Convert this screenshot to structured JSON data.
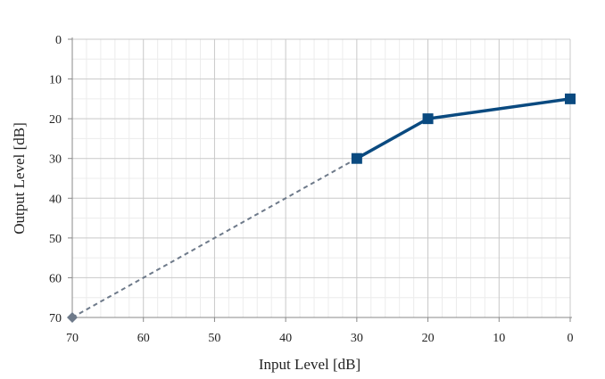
{
  "chart_data": {
    "type": "line",
    "title": "",
    "xlabel": "Input Level [dB]",
    "ylabel": "Output Level [dB]",
    "xlim": [
      70,
      0
    ],
    "ylim": [
      0,
      70
    ],
    "x_reversed": true,
    "y_reversed": true,
    "x_ticks": [
      70,
      60,
      50,
      40,
      30,
      20,
      10,
      0
    ],
    "y_ticks": [
      0,
      10,
      20,
      30,
      40,
      50,
      60,
      70
    ],
    "grid": true,
    "legend": "none",
    "series": [
      {
        "style": "dashed",
        "color": "#6e7a8a",
        "marker": "diamond",
        "x": [
          70,
          30
        ],
        "y": [
          70,
          30
        ],
        "marker_points": [
          0
        ]
      },
      {
        "style": "solid",
        "color": "#0a4a80",
        "marker": "square",
        "x": [
          30,
          20,
          0
        ],
        "y": [
          30,
          20,
          15
        ],
        "marker_points": [
          0,
          1,
          2
        ]
      }
    ]
  }
}
